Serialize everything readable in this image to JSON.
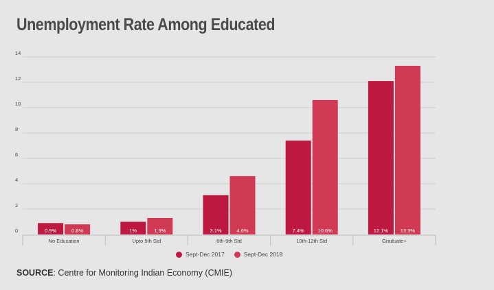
{
  "page_title": "Unemployment Rate Among Educated",
  "legend": [
    "Sept-Dec 2017",
    "Sept-Dec 2018"
  ],
  "source": {
    "label": "SOURCE",
    "text": ": Centre for Monitoring Indian Economy (CMIE)"
  },
  "colors": {
    "series_2017": "#bd1840",
    "series_2018": "#d03a55",
    "gridline": "#cfcfcf",
    "axis": "#bdbdbd",
    "tick_text": "#444444"
  },
  "chart_data": {
    "type": "bar",
    "title": "Unemployment Rate Among Educated",
    "categories": [
      "No Education",
      "Upto 5th Std",
      "6th-9th Std",
      "10th-12th Std",
      "Graduate+"
    ],
    "series": [
      {
        "name": "Sept-Dec 2017",
        "values": [
          0.9,
          1.0,
          3.1,
          7.4,
          12.1
        ],
        "labels": [
          "0.9%",
          "1%",
          "3.1%",
          "7.4%",
          "12.1%"
        ]
      },
      {
        "name": "Sept-Dec 2018",
        "values": [
          0.8,
          1.3,
          4.6,
          10.6,
          13.3
        ],
        "labels": [
          "0.8%",
          "1.3%",
          "4.6%",
          "10.6%",
          "13.3%"
        ]
      }
    ],
    "yticks": [
      0,
      2,
      4,
      6,
      8,
      10,
      12,
      14
    ],
    "ylim": [
      0,
      14
    ],
    "grid": true,
    "legend_position": "bottom-center"
  }
}
